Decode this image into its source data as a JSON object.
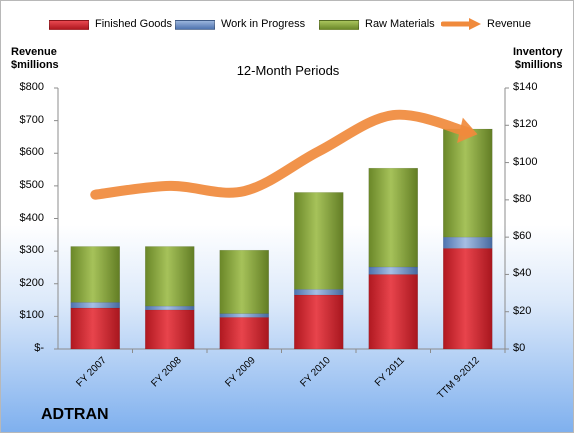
{
  "company": "ADTRAN",
  "chart_data": {
    "type": "bar",
    "stacked": true,
    "title": "12-Month Periods",
    "categories": [
      "FY 2007",
      "FY 2008",
      "FY 2009",
      "FY 2010",
      "FY 2011",
      "TTM 9-2012"
    ],
    "series": [
      {
        "name": "Finished Goods",
        "axis": "right",
        "color": "#d0202a",
        "values": [
          22,
          21,
          17,
          29,
          40,
          54
        ]
      },
      {
        "name": "Work in Progress",
        "axis": "right",
        "color": "#6a8fc7",
        "values": [
          3,
          2,
          2,
          3,
          4,
          6
        ]
      },
      {
        "name": "Raw Materials",
        "axis": "right",
        "color": "#8aa83c",
        "values": [
          30,
          32,
          34,
          52,
          53,
          58
        ]
      },
      {
        "name": "Revenue",
        "axis": "left",
        "type": "line",
        "color": "#f08a3c",
        "values": [
          473,
          500,
          484,
          606,
          717,
          665
        ]
      }
    ],
    "left_axis": {
      "title_line1": "Revenue",
      "title_line2": "$millions",
      "min": 0,
      "max": 800,
      "ticks": [
        0,
        100,
        200,
        300,
        400,
        500,
        600,
        700,
        800
      ],
      "tick_labels": [
        "$-",
        "$100",
        "$200",
        "$300",
        "$400",
        "$500",
        "$600",
        "$700",
        "$800"
      ]
    },
    "right_axis": {
      "title_line1": "Inventory",
      "title_line2": "$millions",
      "min": 0,
      "max": 140,
      "ticks": [
        0,
        20,
        40,
        60,
        80,
        100,
        120,
        140
      ],
      "tick_labels": [
        "$0",
        "$20",
        "$40",
        "$60",
        "$80",
        "$100",
        "$120",
        "$140"
      ]
    },
    "legend_position": "top",
    "grid": false
  }
}
